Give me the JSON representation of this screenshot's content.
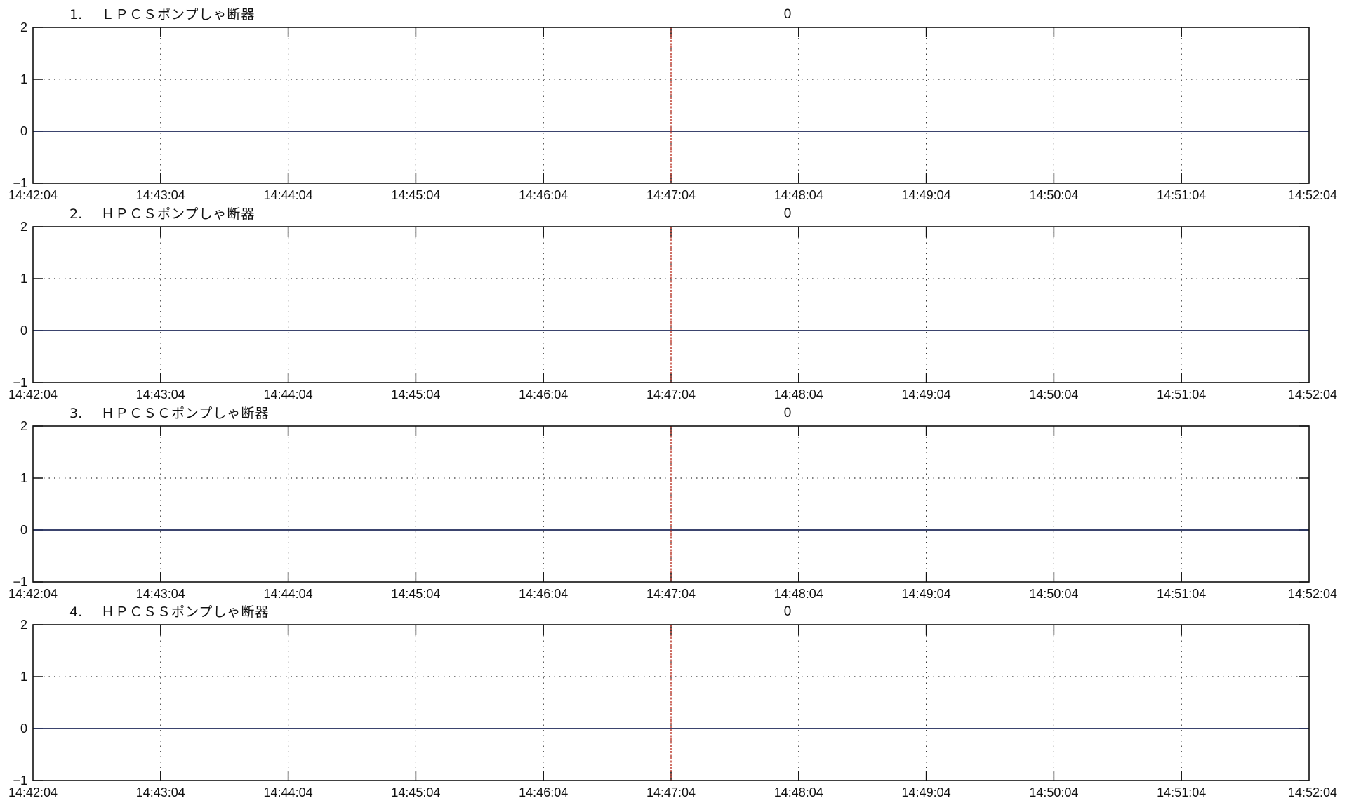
{
  "chart_data": [
    {
      "type": "line",
      "index_label": "1.",
      "title": "ＬＰＣＳポンプしゃ断器",
      "value_readout": "0",
      "x_ticks": [
        "14:42:04",
        "14:43:04",
        "14:44:04",
        "14:45:04",
        "14:46:04",
        "14:47:04",
        "14:48:04",
        "14:49:04",
        "14:50:04",
        "14:51:04",
        "14:52:04"
      ],
      "y_ticks": [
        "2",
        "1",
        "0",
        "−1"
      ],
      "ylim": [
        -1,
        2
      ],
      "xlim": [
        "14:42:04",
        "14:52:04"
      ],
      "cursor_x": "14:47:04",
      "grid": true,
      "series": [
        {
          "x": [
            "14:42:04",
            "14:52:04"
          ],
          "values": [
            0,
            0
          ]
        }
      ]
    },
    {
      "type": "line",
      "index_label": "2.",
      "title": "ＨＰＣＳポンプしゃ断器",
      "value_readout": "0",
      "x_ticks": [
        "14:42:04",
        "14:43:04",
        "14:44:04",
        "14:45:04",
        "14:46:04",
        "14:47:04",
        "14:48:04",
        "14:49:04",
        "14:50:04",
        "14:51:04",
        "14:52:04"
      ],
      "y_ticks": [
        "2",
        "1",
        "0",
        "−1"
      ],
      "ylim": [
        -1,
        2
      ],
      "xlim": [
        "14:42:04",
        "14:52:04"
      ],
      "cursor_x": "14:47:04",
      "grid": true,
      "series": [
        {
          "x": [
            "14:42:04",
            "14:52:04"
          ],
          "values": [
            0,
            0
          ]
        }
      ]
    },
    {
      "type": "line",
      "index_label": "3.",
      "title": "ＨＰＣＳＣポンプしゃ断器",
      "value_readout": "0",
      "x_ticks": [
        "14:42:04",
        "14:43:04",
        "14:44:04",
        "14:45:04",
        "14:46:04",
        "14:47:04",
        "14:48:04",
        "14:49:04",
        "14:50:04",
        "14:51:04",
        "14:52:04"
      ],
      "y_ticks": [
        "2",
        "1",
        "0",
        "−1"
      ],
      "ylim": [
        -1,
        2
      ],
      "xlim": [
        "14:42:04",
        "14:52:04"
      ],
      "cursor_x": "14:47:04",
      "grid": true,
      "series": [
        {
          "x": [
            "14:42:04",
            "14:52:04"
          ],
          "values": [
            0,
            0
          ]
        }
      ]
    },
    {
      "type": "line",
      "index_label": "4.",
      "title": "ＨＰＣＳＳポンプしゃ断器",
      "value_readout": "0",
      "x_ticks": [
        "14:42:04",
        "14:43:04",
        "14:44:04",
        "14:45:04",
        "14:46:04",
        "14:47:04",
        "14:48:04",
        "14:49:04",
        "14:50:04",
        "14:51:04",
        "14:52:04"
      ],
      "y_ticks": [
        "2",
        "1",
        "0",
        "−1"
      ],
      "ylim": [
        -1,
        2
      ],
      "xlim": [
        "14:42:04",
        "14:52:04"
      ],
      "cursor_x": "14:47:04",
      "grid": true,
      "series": [
        {
          "x": [
            "14:42:04",
            "14:52:04"
          ],
          "values": [
            0,
            0
          ]
        }
      ]
    }
  ],
  "colors": {
    "axes": "#111111",
    "grid": "#333333",
    "series_line": "#1f2a5a",
    "cursor": "#c0392b",
    "background": "#ffffff"
  }
}
